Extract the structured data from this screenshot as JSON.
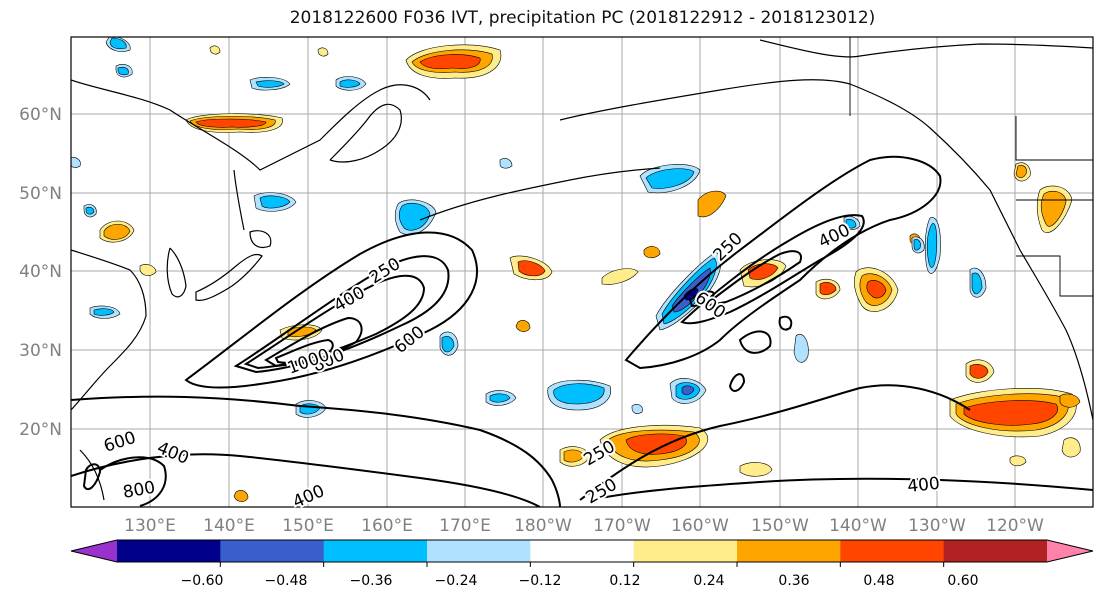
{
  "title": "2018122600 F036 IVT, precipitation PC (2018122912 - 2018123012)",
  "lat_labels": [
    "20°N",
    "30°N",
    "40°N",
    "50°N",
    "60°N"
  ],
  "lon_labels": [
    "130°E",
    "140°E",
    "150°E",
    "160°E",
    "170°E",
    "180°W",
    "170°W",
    "160°W",
    "150°W",
    "140°W",
    "130°W",
    "120°W"
  ],
  "contour_labels": [
    "250",
    "400",
    "600",
    "800",
    "1000",
    "250",
    "400",
    "600",
    "400",
    "600",
    "800",
    "250",
    "250",
    "400",
    "400"
  ],
  "colorbar": {
    "colors": [
      "#9932cc",
      "#00008b",
      "#3a5fcd",
      "#00bfff",
      "#b0e2ff",
      "#ffffff",
      "#ffec8b",
      "#ffa500",
      "#ff4500",
      "#b22222",
      "#ff82ab"
    ],
    "ticks": [
      "−0.60",
      "−0.48",
      "−0.36",
      "−0.24",
      "−0.12",
      "0.12",
      "0.24",
      "0.36",
      "0.48",
      "0.60"
    ]
  }
}
